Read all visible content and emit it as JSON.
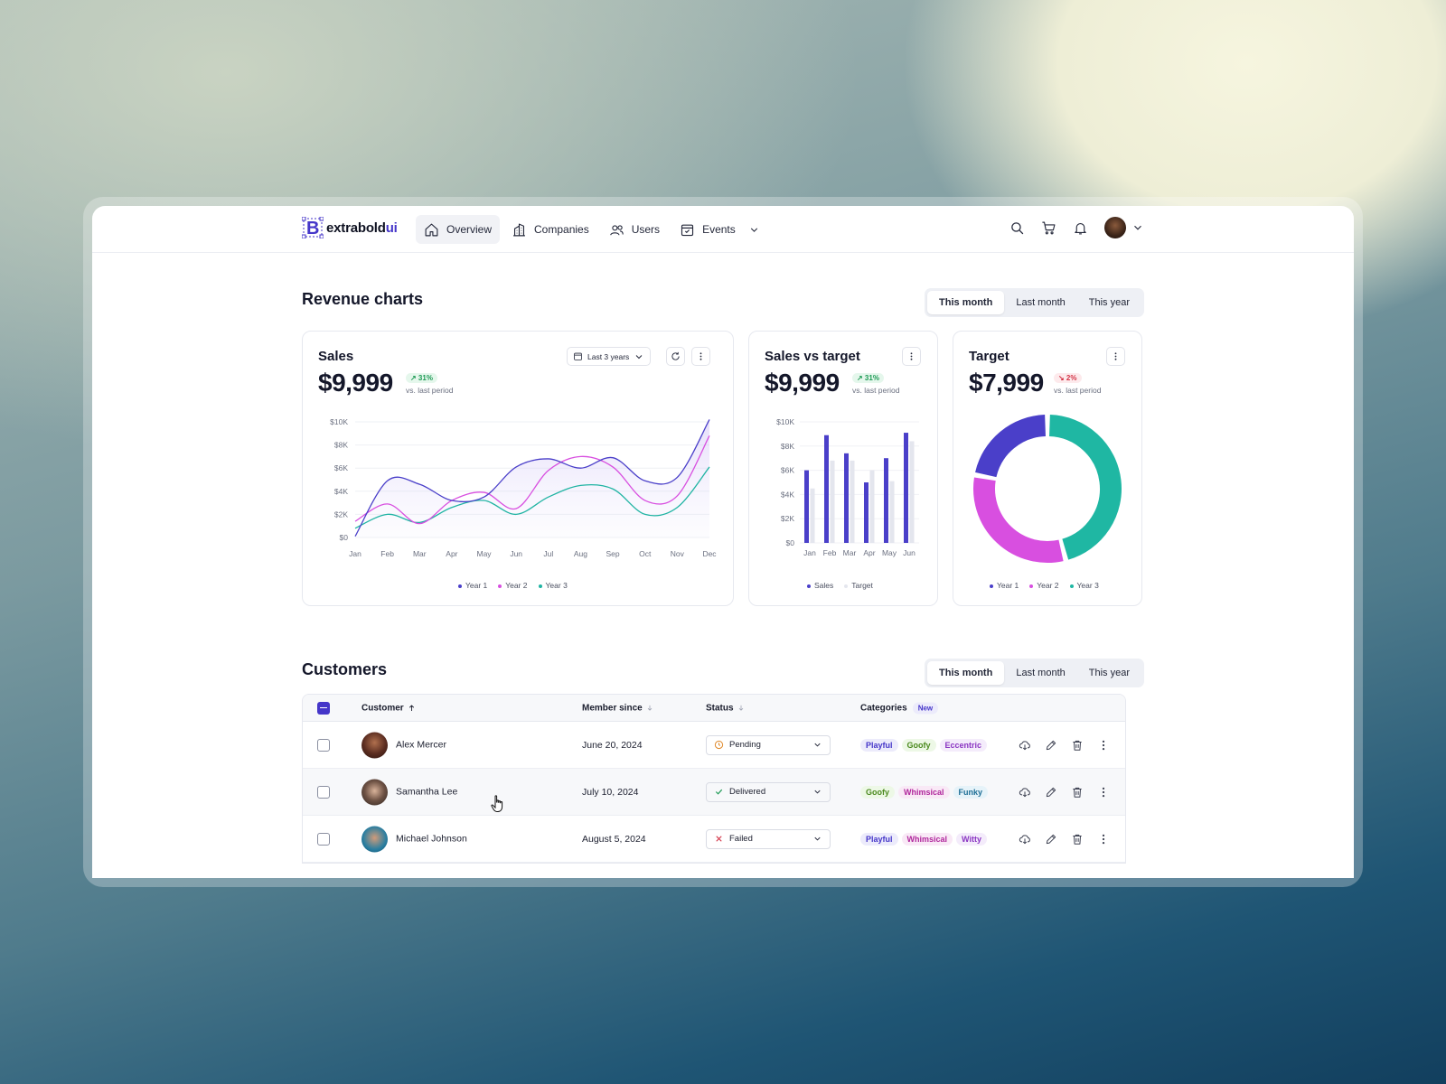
{
  "app": {
    "logo_text": "extrabold",
    "logo_suffix": "ui"
  },
  "nav": {
    "items": [
      {
        "label": "Overview",
        "icon": "home-icon",
        "active": true
      },
      {
        "label": "Companies",
        "icon": "building-icon"
      },
      {
        "label": "Users",
        "icon": "users-icon"
      },
      {
        "label": "Events",
        "icon": "calendar-icon"
      }
    ]
  },
  "revenue": {
    "title": "Revenue charts",
    "periods": [
      "This month",
      "Last month",
      "This year"
    ],
    "active_period": "This month"
  },
  "sales_card": {
    "title": "Sales",
    "value": "$9,999",
    "delta": "↗ 31%",
    "vs": "vs. last period",
    "range_label": "Last 3 years"
  },
  "sales_target_card": {
    "title": "Sales vs target",
    "value": "$9,999",
    "delta": "↗ 31%",
    "vs": "vs. last period"
  },
  "target_card": {
    "title": "Target",
    "value": "$7,999",
    "delta": "↘ 2%",
    "vs": "vs. last period"
  },
  "chart_data": [
    {
      "type": "line",
      "categories": [
        "Jan",
        "Feb",
        "Mar",
        "Apr",
        "May",
        "Jun",
        "Jul",
        "Aug",
        "Sep",
        "Oct",
        "Nov",
        "Dec"
      ],
      "yticks": [
        "$0",
        "$2K",
        "$4K",
        "$6K",
        "$8K",
        "$10K"
      ],
      "ylim": [
        0,
        10000
      ],
      "series": [
        {
          "name": "Year 1",
          "color": "#4a3fc9",
          "values": [
            100,
            4900,
            4600,
            3200,
            3500,
            6100,
            6800,
            6000,
            6900,
            4900,
            5200,
            10200
          ]
        },
        {
          "name": "Year 2",
          "color": "#d84fe0",
          "values": [
            1400,
            2900,
            1200,
            3200,
            3900,
            2500,
            5800,
            7000,
            6100,
            3200,
            3600,
            8800
          ]
        },
        {
          "name": "Year 3",
          "color": "#20b4a3",
          "values": [
            800,
            2000,
            1300,
            2600,
            3200,
            2000,
            3500,
            4500,
            4200,
            2000,
            2600,
            6100
          ]
        }
      ]
    },
    {
      "type": "bar",
      "categories": [
        "Jan",
        "Feb",
        "Mar",
        "Apr",
        "May",
        "Jun"
      ],
      "yticks": [
        "$0",
        "$2K",
        "$4K",
        "$6K",
        "$8K",
        "$10K"
      ],
      "ylim": [
        0,
        10000
      ],
      "series": [
        {
          "name": "Sales",
          "color": "#4a3fc9",
          "values": [
            6000,
            8900,
            7400,
            5000,
            7000,
            9100
          ]
        },
        {
          "name": "Target",
          "color": "#e4e6ee",
          "values": [
            4500,
            6800,
            6800,
            6000,
            5100,
            8400
          ]
        }
      ]
    },
    {
      "type": "pie",
      "donut": true,
      "series": [
        {
          "name": "Year 1",
          "color": "#4a3fc9",
          "value": 22
        },
        {
          "name": "Year 2",
          "color": "#d84fe0",
          "value": 32
        },
        {
          "name": "Year 3",
          "color": "#1fb7a3",
          "value": 46
        }
      ]
    }
  ],
  "customers": {
    "title": "Customers",
    "periods": [
      "This month",
      "Last month",
      "This year"
    ],
    "columns": {
      "customer": "Customer",
      "member_since": "Member since",
      "status": "Status",
      "categories": "Categories",
      "new_badge": "New"
    },
    "rows": [
      {
        "name": "Alex Mercer",
        "since": "June 20, 2024",
        "status": "Pending",
        "tags": [
          "Playful",
          "Goofy",
          "Eccentric"
        ]
      },
      {
        "name": "Samantha Lee",
        "since": "July 10, 2024",
        "status": "Delivered",
        "tags": [
          "Goofy",
          "Whimsical",
          "Funky"
        ]
      },
      {
        "name": "Michael Johnson",
        "since": "August 5, 2024",
        "status": "Failed",
        "tags": [
          "Playful",
          "Whimsical",
          "Witty"
        ]
      }
    ]
  }
}
